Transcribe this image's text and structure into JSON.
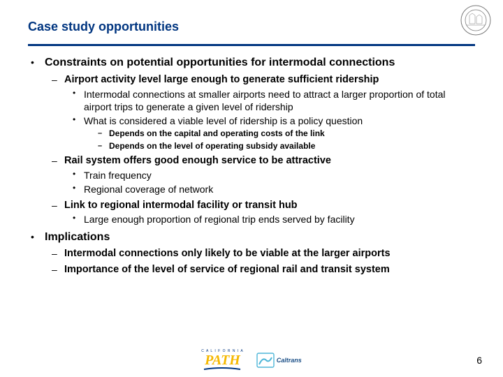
{
  "colors": {
    "title": "#003580",
    "rule": "#003580",
    "seal_stroke": "#7a7a7a",
    "path_yellow": "#f5b800",
    "path_blue": "#003580",
    "caltrans_cyan": "#4eb6d8",
    "caltrans_text": "#1b4f87",
    "text": "#000000"
  },
  "title": "Case study opportunities",
  "title_fontsize": 18,
  "pagenum": "6",
  "bullets": [
    {
      "level": 1,
      "text": "Constraints on potential opportunities for intermodal connections",
      "children": [
        {
          "level": 2,
          "bold": true,
          "text": "Airport activity level large enough to generate sufficient ridership",
          "children": [
            {
              "level": 3,
              "text": "Intermodal connections at smaller airports need to attract a larger proportion of total airport trips to generate a given level of ridership"
            },
            {
              "level": 3,
              "text": "What is considered a viable level of ridership is a policy question",
              "children": [
                {
                  "level": 4,
                  "text": "Depends on the capital and operating costs of the link"
                },
                {
                  "level": 4,
                  "text": "Depends on the level of operating subsidy available"
                }
              ]
            }
          ]
        },
        {
          "level": 2,
          "bold": true,
          "text": "Rail system offers good enough service to be attractive",
          "children": [
            {
              "level": 3,
              "text": "Train frequency"
            },
            {
              "level": 3,
              "text": "Regional coverage of network"
            }
          ]
        },
        {
          "level": 2,
          "bold": true,
          "text": "Link to regional intermodal facility or transit hub",
          "children": [
            {
              "level": 3,
              "text": "Large enough proportion of regional trip ends served by facility"
            }
          ]
        }
      ]
    },
    {
      "level": 1,
      "text": "Implications",
      "children": [
        {
          "level": 2,
          "bold": true,
          "text": "Intermodal connections only likely to be viable at the larger airports"
        },
        {
          "level": 2,
          "bold": true,
          "text": "Importance of the level of service of regional rail and transit system"
        }
      ]
    }
  ],
  "logos": {
    "path_top": "C A L I F O R N I A",
    "path_main": "PATH",
    "caltrans": "Caltrans"
  }
}
